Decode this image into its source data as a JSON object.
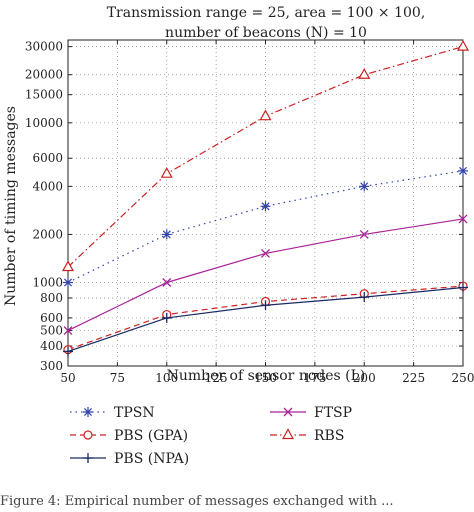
{
  "chart_data": {
    "type": "line",
    "title_line1": "Transmission range = 25, area = 100 × 100,",
    "title_line2": "number of beacons (N) = 10",
    "xlabel": "Number of sensor nodes (L)",
    "ylabel": "Number of timing messages",
    "xlim": [
      50,
      250
    ],
    "ylim": [
      300,
      33000
    ],
    "yscale": "log",
    "grid": true,
    "x_ticks": [
      50,
      75,
      100,
      125,
      150,
      175,
      200,
      225,
      250
    ],
    "x_tick_labels": [
      "50",
      "75",
      "100",
      "125",
      "150",
      "175",
      "200",
      "225",
      "250"
    ],
    "y_ticks": [
      300,
      400,
      500,
      600,
      800,
      1000,
      2000,
      4000,
      6000,
      10000,
      15000,
      20000,
      30000
    ],
    "y_tick_labels": [
      "300",
      "400",
      "500",
      "600",
      "800",
      "1000",
      "2000",
      "4000",
      "6000",
      "10000",
      "15000",
      "20000",
      "30000"
    ],
    "x": [
      50,
      100,
      150,
      200,
      250
    ],
    "series": [
      {
        "name": "TPSN",
        "values": [
          1000,
          2000,
          3000,
          4000,
          5000
        ],
        "color": "#3344aa",
        "marker": "asterisk",
        "dash": "1.5,4"
      },
      {
        "name": "PBS (GPA)",
        "values": [
          380,
          630,
          760,
          850,
          950
        ],
        "color": "#cc2222",
        "marker": "circle",
        "dash": "6,4"
      },
      {
        "name": "PBS (NPA)",
        "values": [
          370,
          600,
          720,
          810,
          930
        ],
        "color": "#1a2a66",
        "marker": "plus",
        "dash": ""
      },
      {
        "name": "FTSP",
        "values": [
          500,
          1000,
          1520,
          2000,
          2500
        ],
        "color": "#aa2299",
        "marker": "cross",
        "dash": ""
      },
      {
        "name": "RBS",
        "values": [
          1250,
          4800,
          11000,
          20000,
          30000
        ],
        "color": "#cc2222",
        "marker": "triangle",
        "dash": "7,3,1.5,3"
      }
    ],
    "legend_placement": "bottom"
  },
  "caption": "Figure 4: Empirical number of messages exchanged with ..."
}
